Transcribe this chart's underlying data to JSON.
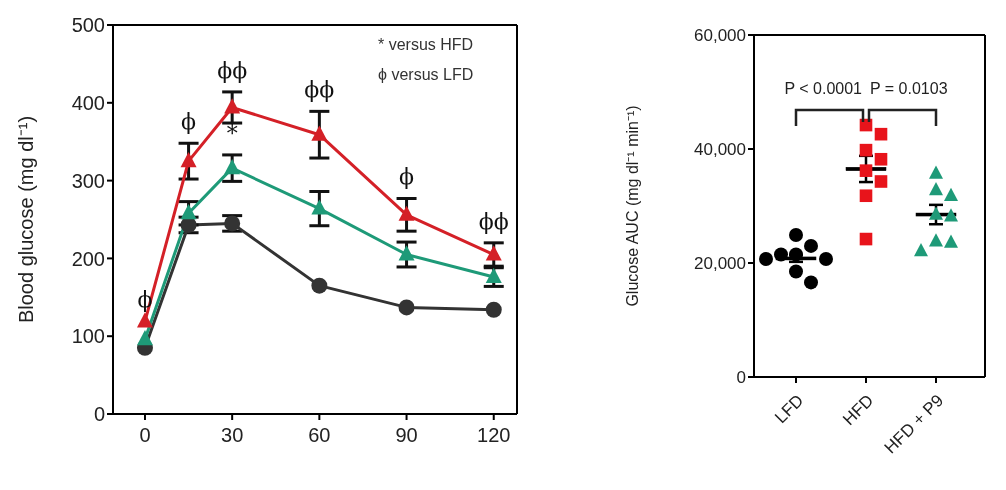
{
  "chart_data": [
    {
      "type": "line",
      "ylabel": "Blood glucose (mg dl⁻¹)",
      "x": [
        0,
        15,
        30,
        60,
        90,
        120
      ],
      "xlim": [
        -11,
        128
      ],
      "xticks": [
        0,
        30,
        60,
        90,
        120
      ],
      "ylim": [
        0,
        500
      ],
      "yticks": [
        0,
        100,
        200,
        300,
        400,
        500
      ],
      "series": [
        {
          "color": "#333333",
          "marker": "circle",
          "values": [
            85,
            243,
            245,
            165,
            137,
            134
          ],
          "errors": [
            null,
            10,
            10,
            null,
            null,
            null
          ]
        },
        {
          "color": "#1e9a78",
          "marker": "triangle",
          "values": [
            96,
            258,
            316,
            264,
            205,
            176
          ],
          "errors": [
            null,
            15,
            17,
            22,
            16,
            12
          ]
        },
        {
          "color": "#d42027",
          "marker": "triangle",
          "values": [
            119,
            325,
            394,
            359,
            256,
            205
          ],
          "errors": [
            null,
            23,
            20,
            30,
            21,
            15
          ]
        }
      ],
      "annotations": [
        "* versus HFD",
        "ϕ versus LFD",
        {
          "text": "ϕ",
          "x": 0,
          "y": 119
        },
        {
          "text": "ϕ",
          "x": 15,
          "y": 325
        },
        {
          "text": "ϕϕ",
          "x": 30,
          "y": 394
        },
        {
          "text": "*",
          "x": 30,
          "y": 316
        },
        {
          "text": "ϕϕ",
          "x": 60,
          "y": 359
        },
        {
          "text": "ϕ",
          "x": 90,
          "y": 256
        },
        {
          "text": "ϕϕ",
          "x": 120,
          "y": 205
        }
      ]
    },
    {
      "type": "scatter",
      "ylabel": "Glucose AUC (mg dl⁻¹ min⁻¹)",
      "categories": [
        "LFD",
        "HFD",
        "HFD + P9"
      ],
      "ylim": [
        0,
        60000
      ],
      "yticks": [
        0,
        {
          "value": 20000,
          "label": "20,000"
        },
        {
          "value": 40000,
          "label": "40,000"
        },
        {
          "value": 60000,
          "label": "60,000"
        }
      ],
      "series": [
        {
          "color": "#000000",
          "marker": "circle",
          "x": [
            "LFD",
            "LFD",
            "LFD",
            "LFD",
            "LFD",
            "LFD",
            "LFD",
            "LFD"
          ],
          "values": [
            24900,
            23000,
            21500,
            21500,
            20700,
            20700,
            18500,
            16600
          ]
        },
        {
          "color": "#e8141b",
          "marker": "square",
          "x": [
            "HFD",
            "HFD",
            "HFD",
            "HFD",
            "HFD",
            "HFD",
            "HFD",
            "HFD"
          ],
          "values": [
            44200,
            42600,
            39800,
            38200,
            36200,
            34300,
            31800,
            24200
          ]
        },
        {
          "color": "#1e9a78",
          "marker": "triangle",
          "x": [
            "HFD + P9",
            "HFD + P9",
            "HFD + P9",
            "HFD + P9",
            "HFD + P9",
            "HFD + P9",
            "HFD + P9",
            "HFD + P9"
          ],
          "values": [
            35700,
            32800,
            31800,
            28500,
            28200,
            23800,
            23600,
            22100
          ]
        },
        {
          "type": "box",
          "color": "#000000",
          "boxes": [
            {
              "low": 20200,
              "q1": 20800,
              "median": 20800,
              "q3": 20800,
              "high": 21400
            },
            {
              "low": 34200,
              "q1": 36500,
              "median": 36500,
              "q3": 36500,
              "high": 38800
            },
            {
              "low": 26800,
              "q1": 28500,
              "median": 28500,
              "q3": 28500,
              "high": 30200
            }
          ]
        }
      ],
      "annotations": [
        "P < 0.0001",
        "P = 0.0103"
      ]
    }
  ]
}
